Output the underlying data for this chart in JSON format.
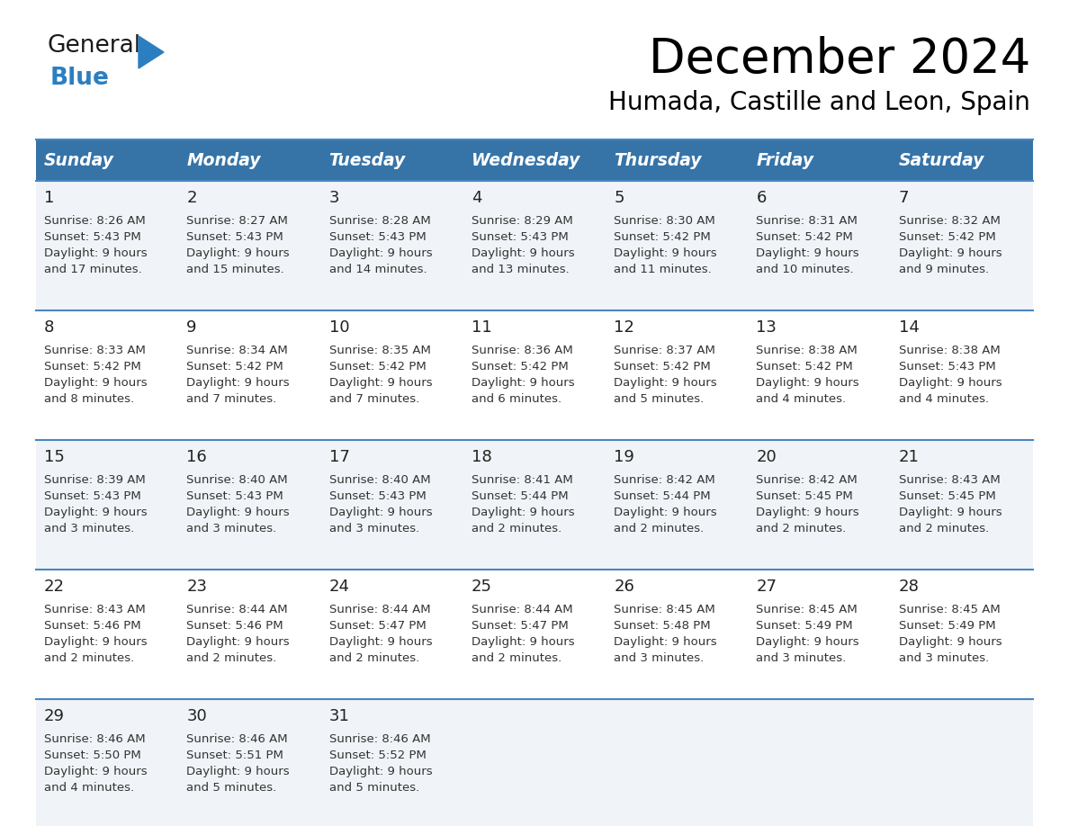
{
  "title": "December 2024",
  "subtitle": "Humada, Castille and Leon, Spain",
  "header_bg": "#3674a8",
  "header_text": "#ffffff",
  "row_bg": "#f0f4f8",
  "row_bg_white": "#ffffff",
  "cell_border": "#4a86c0",
  "day_headers": [
    "Sunday",
    "Monday",
    "Tuesday",
    "Wednesday",
    "Thursday",
    "Friday",
    "Saturday"
  ],
  "days": [
    {
      "day": 1,
      "col": 0,
      "row": 0,
      "sunrise": "8:26 AM",
      "sunset": "5:43 PM",
      "daylight_h": "9 hours",
      "daylight_m": "and 17 minutes."
    },
    {
      "day": 2,
      "col": 1,
      "row": 0,
      "sunrise": "8:27 AM",
      "sunset": "5:43 PM",
      "daylight_h": "9 hours",
      "daylight_m": "and 15 minutes."
    },
    {
      "day": 3,
      "col": 2,
      "row": 0,
      "sunrise": "8:28 AM",
      "sunset": "5:43 PM",
      "daylight_h": "9 hours",
      "daylight_m": "and 14 minutes."
    },
    {
      "day": 4,
      "col": 3,
      "row": 0,
      "sunrise": "8:29 AM",
      "sunset": "5:43 PM",
      "daylight_h": "9 hours",
      "daylight_m": "and 13 minutes."
    },
    {
      "day": 5,
      "col": 4,
      "row": 0,
      "sunrise": "8:30 AM",
      "sunset": "5:42 PM",
      "daylight_h": "9 hours",
      "daylight_m": "and 11 minutes."
    },
    {
      "day": 6,
      "col": 5,
      "row": 0,
      "sunrise": "8:31 AM",
      "sunset": "5:42 PM",
      "daylight_h": "9 hours",
      "daylight_m": "and 10 minutes."
    },
    {
      "day": 7,
      "col": 6,
      "row": 0,
      "sunrise": "8:32 AM",
      "sunset": "5:42 PM",
      "daylight_h": "9 hours",
      "daylight_m": "and 9 minutes."
    },
    {
      "day": 8,
      "col": 0,
      "row": 1,
      "sunrise": "8:33 AM",
      "sunset": "5:42 PM",
      "daylight_h": "9 hours",
      "daylight_m": "and 8 minutes."
    },
    {
      "day": 9,
      "col": 1,
      "row": 1,
      "sunrise": "8:34 AM",
      "sunset": "5:42 PM",
      "daylight_h": "9 hours",
      "daylight_m": "and 7 minutes."
    },
    {
      "day": 10,
      "col": 2,
      "row": 1,
      "sunrise": "8:35 AM",
      "sunset": "5:42 PM",
      "daylight_h": "9 hours",
      "daylight_m": "and 7 minutes."
    },
    {
      "day": 11,
      "col": 3,
      "row": 1,
      "sunrise": "8:36 AM",
      "sunset": "5:42 PM",
      "daylight_h": "9 hours",
      "daylight_m": "and 6 minutes."
    },
    {
      "day": 12,
      "col": 4,
      "row": 1,
      "sunrise": "8:37 AM",
      "sunset": "5:42 PM",
      "daylight_h": "9 hours",
      "daylight_m": "and 5 minutes."
    },
    {
      "day": 13,
      "col": 5,
      "row": 1,
      "sunrise": "8:38 AM",
      "sunset": "5:42 PM",
      "daylight_h": "9 hours",
      "daylight_m": "and 4 minutes."
    },
    {
      "day": 14,
      "col": 6,
      "row": 1,
      "sunrise": "8:38 AM",
      "sunset": "5:43 PM",
      "daylight_h": "9 hours",
      "daylight_m": "and 4 minutes."
    },
    {
      "day": 15,
      "col": 0,
      "row": 2,
      "sunrise": "8:39 AM",
      "sunset": "5:43 PM",
      "daylight_h": "9 hours",
      "daylight_m": "and 3 minutes."
    },
    {
      "day": 16,
      "col": 1,
      "row": 2,
      "sunrise": "8:40 AM",
      "sunset": "5:43 PM",
      "daylight_h": "9 hours",
      "daylight_m": "and 3 minutes."
    },
    {
      "day": 17,
      "col": 2,
      "row": 2,
      "sunrise": "8:40 AM",
      "sunset": "5:43 PM",
      "daylight_h": "9 hours",
      "daylight_m": "and 3 minutes."
    },
    {
      "day": 18,
      "col": 3,
      "row": 2,
      "sunrise": "8:41 AM",
      "sunset": "5:44 PM",
      "daylight_h": "9 hours",
      "daylight_m": "and 2 minutes."
    },
    {
      "day": 19,
      "col": 4,
      "row": 2,
      "sunrise": "8:42 AM",
      "sunset": "5:44 PM",
      "daylight_h": "9 hours",
      "daylight_m": "and 2 minutes."
    },
    {
      "day": 20,
      "col": 5,
      "row": 2,
      "sunrise": "8:42 AM",
      "sunset": "5:45 PM",
      "daylight_h": "9 hours",
      "daylight_m": "and 2 minutes."
    },
    {
      "day": 21,
      "col": 6,
      "row": 2,
      "sunrise": "8:43 AM",
      "sunset": "5:45 PM",
      "daylight_h": "9 hours",
      "daylight_m": "and 2 minutes."
    },
    {
      "day": 22,
      "col": 0,
      "row": 3,
      "sunrise": "8:43 AM",
      "sunset": "5:46 PM",
      "daylight_h": "9 hours",
      "daylight_m": "and 2 minutes."
    },
    {
      "day": 23,
      "col": 1,
      "row": 3,
      "sunrise": "8:44 AM",
      "sunset": "5:46 PM",
      "daylight_h": "9 hours",
      "daylight_m": "and 2 minutes."
    },
    {
      "day": 24,
      "col": 2,
      "row": 3,
      "sunrise": "8:44 AM",
      "sunset": "5:47 PM",
      "daylight_h": "9 hours",
      "daylight_m": "and 2 minutes."
    },
    {
      "day": 25,
      "col": 3,
      "row": 3,
      "sunrise": "8:44 AM",
      "sunset": "5:47 PM",
      "daylight_h": "9 hours",
      "daylight_m": "and 2 minutes."
    },
    {
      "day": 26,
      "col": 4,
      "row": 3,
      "sunrise": "8:45 AM",
      "sunset": "5:48 PM",
      "daylight_h": "9 hours",
      "daylight_m": "and 3 minutes."
    },
    {
      "day": 27,
      "col": 5,
      "row": 3,
      "sunrise": "8:45 AM",
      "sunset": "5:49 PM",
      "daylight_h": "9 hours",
      "daylight_m": "and 3 minutes."
    },
    {
      "day": 28,
      "col": 6,
      "row": 3,
      "sunrise": "8:45 AM",
      "sunset": "5:49 PM",
      "daylight_h": "9 hours",
      "daylight_m": "and 3 minutes."
    },
    {
      "day": 29,
      "col": 0,
      "row": 4,
      "sunrise": "8:46 AM",
      "sunset": "5:50 PM",
      "daylight_h": "9 hours",
      "daylight_m": "and 4 minutes."
    },
    {
      "day": 30,
      "col": 1,
      "row": 4,
      "sunrise": "8:46 AM",
      "sunset": "5:51 PM",
      "daylight_h": "9 hours",
      "daylight_m": "and 5 minutes."
    },
    {
      "day": 31,
      "col": 2,
      "row": 4,
      "sunrise": "8:46 AM",
      "sunset": "5:52 PM",
      "daylight_h": "9 hours",
      "daylight_m": "and 5 minutes."
    }
  ],
  "logo_general_color": "#1a1a1a",
  "logo_blue_color": "#2b7fc1",
  "logo_triangle_color": "#2b7fc1",
  "fig_width": 11.88,
  "fig_height": 9.18,
  "dpi": 100
}
